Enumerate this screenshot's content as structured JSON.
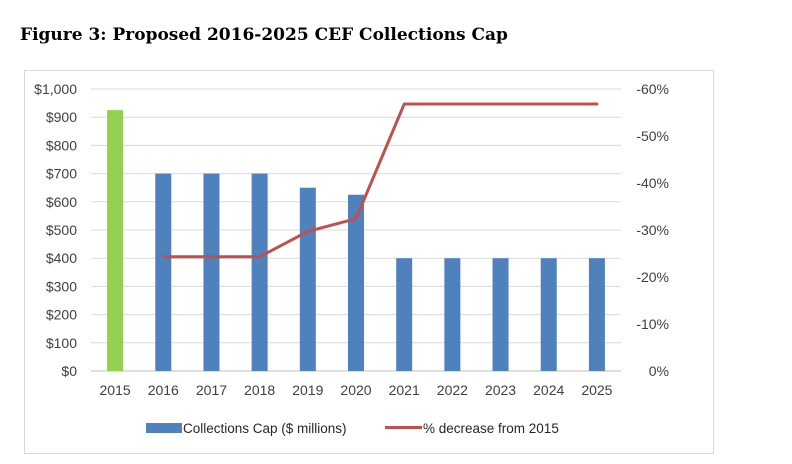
{
  "figure_title": "Figure 3: Proposed 2016-2025 CEF Collections Cap",
  "chart_data": {
    "type": "bar",
    "title": "",
    "xlabel": "",
    "ylabel": "",
    "categories": [
      "2015",
      "2016",
      "2017",
      "2018",
      "2019",
      "2020",
      "2021",
      "2022",
      "2023",
      "2024",
      "2025"
    ],
    "ylim": [
      0,
      1000
    ],
    "y2lim": [
      0,
      -60
    ],
    "y_ticks": [
      0,
      100,
      200,
      300,
      400,
      500,
      600,
      700,
      800,
      900,
      1000
    ],
    "y_tick_labels": [
      "$0",
      "$100",
      "$200",
      "$300",
      "$400",
      "$500",
      "$600",
      "$700",
      "$800",
      "$900",
      "$1,000"
    ],
    "y2_ticks": [
      0,
      -10,
      -20,
      -30,
      -40,
      -50,
      -60
    ],
    "y2_tick_labels": [
      "0%",
      "-10%",
      "-20%",
      "-30%",
      "-40%",
      "-50%",
      "-60%"
    ],
    "grid": true,
    "legend_position": "bottom",
    "series": [
      {
        "name": "Collections Cap ($ millions)",
        "type": "bar",
        "axis": "left",
        "color": "#4f81bd",
        "highlight": {
          "category": "2015",
          "color": "#92d050"
        },
        "values": [
          925,
          700,
          700,
          700,
          650,
          625,
          400,
          400,
          400,
          400,
          400
        ]
      },
      {
        "name": "% decrease from 2015",
        "type": "line",
        "axis": "right",
        "color": "#c0504d",
        "values": [
          null,
          -24.3,
          -24.3,
          -24.3,
          -29.7,
          -32.4,
          -56.8,
          -56.8,
          -56.8,
          -56.8,
          -56.8
        ]
      }
    ]
  }
}
